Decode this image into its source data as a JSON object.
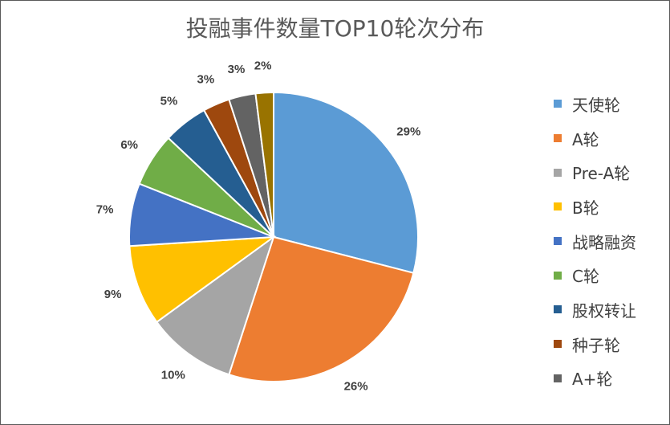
{
  "chart_data": {
    "type": "pie",
    "title": "投融事件数量TOP10轮次分布",
    "categories": [
      "天使轮",
      "A轮",
      "Pre-A轮",
      "B轮",
      "战略融资",
      "C轮",
      "股权转让",
      "种子轮",
      "A+轮",
      ""
    ],
    "values": [
      29,
      26,
      10,
      9,
      7,
      6,
      5,
      3,
      3,
      2
    ],
    "value_labels": [
      "29%",
      "26%",
      "10%",
      "9%",
      "7%",
      "6%",
      "5%",
      "3%",
      "3%",
      "2%"
    ],
    "colors": [
      "#5B9BD5",
      "#ED7D31",
      "#A5A5A5",
      "#FFC000",
      "#4472C4",
      "#70AD47",
      "#255E91",
      "#9E480E",
      "#636363",
      "#997300"
    ],
    "legend_position": "right",
    "legend_entries": [
      "天使轮",
      "A轮",
      "Pre-A轮",
      "B轮",
      "战略融资",
      "C轮",
      "股权转让",
      "种子轮",
      "A+轮"
    ],
    "start_angle": "12 o'clock",
    "direction": "clockwise"
  }
}
